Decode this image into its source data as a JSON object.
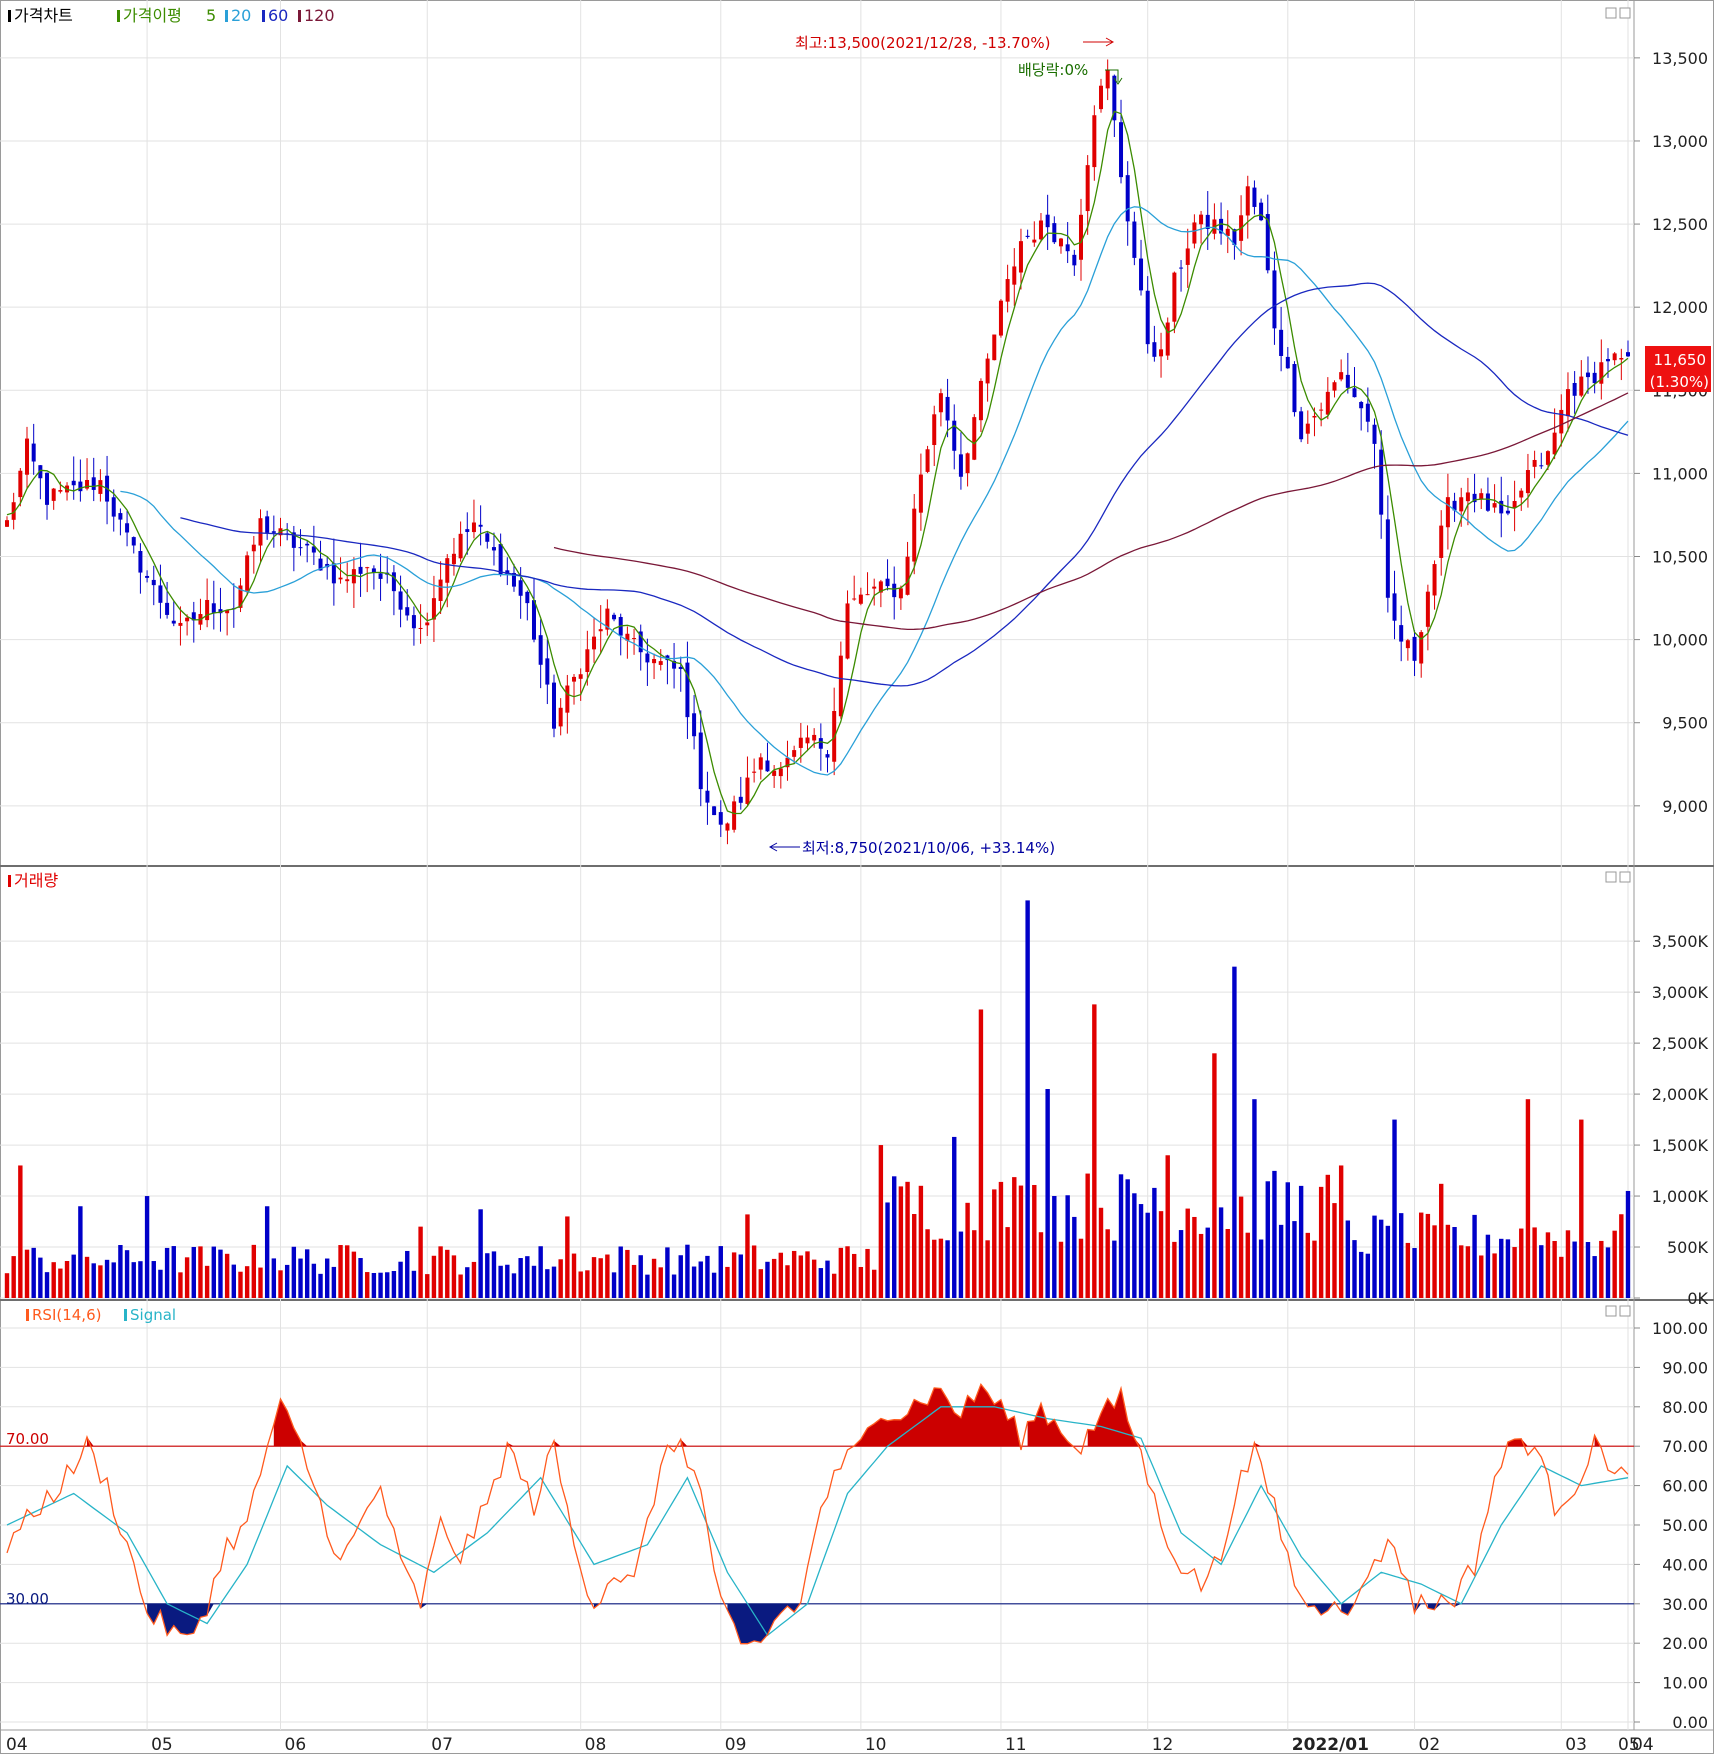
{
  "price_panel": {
    "legend": {
      "title": "가격차트",
      "ma_label": "가격이평",
      "ma5": "5",
      "ma20": "20",
      "ma60": "60",
      "ma120": "120"
    },
    "annotations": {
      "high": "최고:13,500(2021/12/28, -13.70%)",
      "low": "최저:8,750(2021/10/06, +33.14%)",
      "dividend": "배당락:0%"
    },
    "current": {
      "price": "11,650",
      "change": "(1.30%)"
    }
  },
  "volume_panel": {
    "legend": "거래량"
  },
  "rsi_panel": {
    "legend": "RSI(14,6)",
    "signal_label": "Signal",
    "upper_label": "70.00",
    "lower_label": "30.00"
  },
  "colors": {
    "up": "#e00000",
    "down": "#0000c8",
    "ma5": "#3c8c00",
    "ma20": "#2aa0d8",
    "ma60": "#1a28c0",
    "ma120": "#7a1838",
    "rsi": "#ff5a1e",
    "signal": "#28b4c8",
    "rsi_hi_fill": "#cc0000",
    "rsi_lo_fill": "#0a1a80"
  },
  "chart_data": [
    {
      "type": "candlestick",
      "yticks": [
        "13,500",
        "13,000",
        "12,500",
        "12,000",
        "11,500",
        "11,000",
        "10,500",
        "10,000",
        "9,500",
        "9,000"
      ],
      "ylim": [
        8650,
        13800
      ],
      "xticks": [
        "04",
        "05",
        "06",
        "07",
        "08",
        "09",
        "10",
        "11",
        "12",
        "2022/01",
        "02",
        "03",
        "04",
        "05"
      ],
      "anchors": [
        [
          0,
          10700
        ],
        [
          3,
          11150
        ],
        [
          6,
          10850
        ],
        [
          10,
          10900
        ],
        [
          14,
          10950
        ],
        [
          18,
          10600
        ],
        [
          22,
          10300
        ],
        [
          26,
          10050
        ],
        [
          30,
          10200
        ],
        [
          34,
          10200
        ],
        [
          38,
          10700
        ],
        [
          42,
          10600
        ],
        [
          46,
          10500
        ],
        [
          50,
          10350
        ],
        [
          54,
          10450
        ],
        [
          58,
          10300
        ],
        [
          62,
          10050
        ],
        [
          66,
          10500
        ],
        [
          70,
          10700
        ],
        [
          74,
          10450
        ],
        [
          78,
          10200
        ],
        [
          82,
          9500
        ],
        [
          86,
          9850
        ],
        [
          90,
          10150
        ],
        [
          94,
          9950
        ],
        [
          98,
          9850
        ],
        [
          101,
          9800
        ],
        [
          104,
          9150
        ],
        [
          107,
          8850
        ],
        [
          110,
          9050
        ],
        [
          113,
          9300
        ],
        [
          116,
          9200
        ],
        [
          120,
          9400
        ],
        [
          123,
          9350
        ],
        [
          124,
          9600
        ],
        [
          126,
          10200
        ],
        [
          130,
          10300
        ],
        [
          134,
          10300
        ],
        [
          137,
          11000
        ],
        [
          140,
          11500
        ],
        [
          143,
          11000
        ],
        [
          146,
          11500
        ],
        [
          149,
          12000
        ],
        [
          152,
          12400
        ],
        [
          156,
          12500
        ],
        [
          160,
          12300
        ],
        [
          163,
          13200
        ],
        [
          165,
          13400
        ],
        [
          167,
          12800
        ],
        [
          169,
          12300
        ],
        [
          171,
          11800
        ],
        [
          173,
          11700
        ],
        [
          175,
          12150
        ],
        [
          178,
          12500
        ],
        [
          181,
          12500
        ],
        [
          184,
          12400
        ],
        [
          186,
          12700
        ],
        [
          188,
          12500
        ],
        [
          190,
          11900
        ],
        [
          192,
          11600
        ],
        [
          194,
          11250
        ],
        [
          197,
          11400
        ],
        [
          200,
          11600
        ],
        [
          203,
          11400
        ],
        [
          205,
          11200
        ],
        [
          207,
          10200
        ],
        [
          209,
          10000
        ],
        [
          211,
          9900
        ],
        [
          213,
          10300
        ],
        [
          216,
          10800
        ],
        [
          219,
          10900
        ],
        [
          222,
          10800
        ],
        [
          225,
          10700
        ],
        [
          228,
          11000
        ],
        [
          231,
          11100
        ],
        [
          234,
          11500
        ],
        [
          237,
          11550
        ],
        [
          240,
          11700
        ],
        [
          243,
          11650
        ]
      ],
      "n_days": 244,
      "annotations": {
        "high_value": 13500,
        "high_date": "2021/12/28",
        "low_value": 8750,
        "low_date": "2021/10/06",
        "current": 11650
      }
    },
    {
      "type": "bar",
      "series": "거래량",
      "yticks": [
        "3,500K",
        "3,000K",
        "2,500K",
        "2,000K",
        "1,500K",
        "1,000K",
        "500K",
        "0K"
      ],
      "ylim": [
        0,
        4100
      ],
      "spikes": [
        [
          2,
          1300
        ],
        [
          11,
          900
        ],
        [
          21,
          1000
        ],
        [
          39,
          900
        ],
        [
          62,
          700
        ],
        [
          71,
          870
        ],
        [
          84,
          800
        ],
        [
          111,
          820
        ],
        [
          131,
          1500
        ],
        [
          142,
          1580
        ],
        [
          146,
          2830
        ],
        [
          153,
          3900
        ],
        [
          156,
          2050
        ],
        [
          163,
          2880
        ],
        [
          172,
          1080
        ],
        [
          174,
          1400
        ],
        [
          181,
          2400
        ],
        [
          184,
          3250
        ],
        [
          187,
          1950
        ],
        [
          200,
          1300
        ],
        [
          208,
          1750
        ],
        [
          215,
          1120
        ],
        [
          228,
          1950
        ],
        [
          236,
          1750
        ],
        [
          243,
          1050
        ]
      ]
    },
    {
      "type": "line",
      "series": [
        "RSI(14,6)",
        "Signal"
      ],
      "yticks": [
        "100.00",
        "90.00",
        "80.00",
        "70.00",
        "60.00",
        "50.00",
        "40.00",
        "30.00",
        "20.00",
        "10.00",
        "0.00"
      ],
      "ylim": [
        0,
        100
      ],
      "levels": [
        70,
        30
      ],
      "rsi_anchors": [
        [
          0,
          45
        ],
        [
          5,
          55
        ],
        [
          8,
          60
        ],
        [
          12,
          70
        ],
        [
          15,
          60
        ],
        [
          18,
          45
        ],
        [
          21,
          28
        ],
        [
          24,
          24
        ],
        [
          27,
          20
        ],
        [
          30,
          30
        ],
        [
          33,
          45
        ],
        [
          36,
          50
        ],
        [
          39,
          70
        ],
        [
          41,
          80
        ],
        [
          44,
          70
        ],
        [
          47,
          55
        ],
        [
          50,
          40
        ],
        [
          53,
          50
        ],
        [
          56,
          60
        ],
        [
          59,
          40
        ],
        [
          62,
          30
        ],
        [
          65,
          50
        ],
        [
          68,
          42
        ],
        [
          72,
          55
        ],
        [
          75,
          70
        ],
        [
          79,
          55
        ],
        [
          82,
          70
        ],
        [
          85,
          45
        ],
        [
          88,
          30
        ],
        [
          91,
          38
        ],
        [
          94,
          35
        ],
        [
          98,
          65
        ],
        [
          101,
          72
        ],
        [
          104,
          58
        ],
        [
          107,
          30
        ],
        [
          110,
          18
        ],
        [
          113,
          20
        ],
        [
          116,
          28
        ],
        [
          119,
          30
        ],
        [
          122,
          55
        ],
        [
          125,
          65
        ],
        [
          128,
          70
        ],
        [
          131,
          80
        ],
        [
          134,
          78
        ],
        [
          137,
          82
        ],
        [
          140,
          84
        ],
        [
          143,
          78
        ],
        [
          146,
          85
        ],
        [
          149,
          80
        ],
        [
          152,
          72
        ],
        [
          155,
          80
        ],
        [
          158,
          74
        ],
        [
          161,
          70
        ],
        [
          164,
          78
        ],
        [
          167,
          82
        ],
        [
          170,
          68
        ],
        [
          173,
          50
        ],
        [
          176,
          40
        ],
        [
          179,
          35
        ],
        [
          182,
          42
        ],
        [
          184,
          58
        ],
        [
          187,
          68
        ],
        [
          190,
          55
        ],
        [
          193,
          35
        ],
        [
          196,
          28
        ],
        [
          199,
          32
        ],
        [
          202,
          28
        ],
        [
          205,
          42
        ],
        [
          208,
          45
        ],
        [
          211,
          30
        ],
        [
          214,
          30
        ],
        [
          217,
          32
        ],
        [
          220,
          40
        ],
        [
          223,
          62
        ],
        [
          226,
          72
        ],
        [
          229,
          70
        ],
        [
          232,
          55
        ],
        [
          235,
          60
        ],
        [
          238,
          70
        ],
        [
          241,
          65
        ],
        [
          243,
          62
        ]
      ],
      "signal_anchors": [
        [
          0,
          50
        ],
        [
          10,
          58
        ],
        [
          18,
          48
        ],
        [
          24,
          30
        ],
        [
          30,
          25
        ],
        [
          36,
          40
        ],
        [
          42,
          65
        ],
        [
          48,
          55
        ],
        [
          56,
          45
        ],
        [
          64,
          38
        ],
        [
          72,
          48
        ],
        [
          80,
          62
        ],
        [
          88,
          40
        ],
        [
          96,
          45
        ],
        [
          102,
          62
        ],
        [
          108,
          38
        ],
        [
          114,
          22
        ],
        [
          120,
          30
        ],
        [
          126,
          58
        ],
        [
          132,
          70
        ],
        [
          140,
          80
        ],
        [
          148,
          80
        ],
        [
          156,
          77
        ],
        [
          164,
          75
        ],
        [
          170,
          72
        ],
        [
          176,
          48
        ],
        [
          182,
          40
        ],
        [
          188,
          60
        ],
        [
          194,
          42
        ],
        [
          200,
          30
        ],
        [
          206,
          38
        ],
        [
          212,
          35
        ],
        [
          218,
          30
        ],
        [
          224,
          50
        ],
        [
          230,
          65
        ],
        [
          236,
          60
        ],
        [
          243,
          62
        ]
      ]
    }
  ]
}
